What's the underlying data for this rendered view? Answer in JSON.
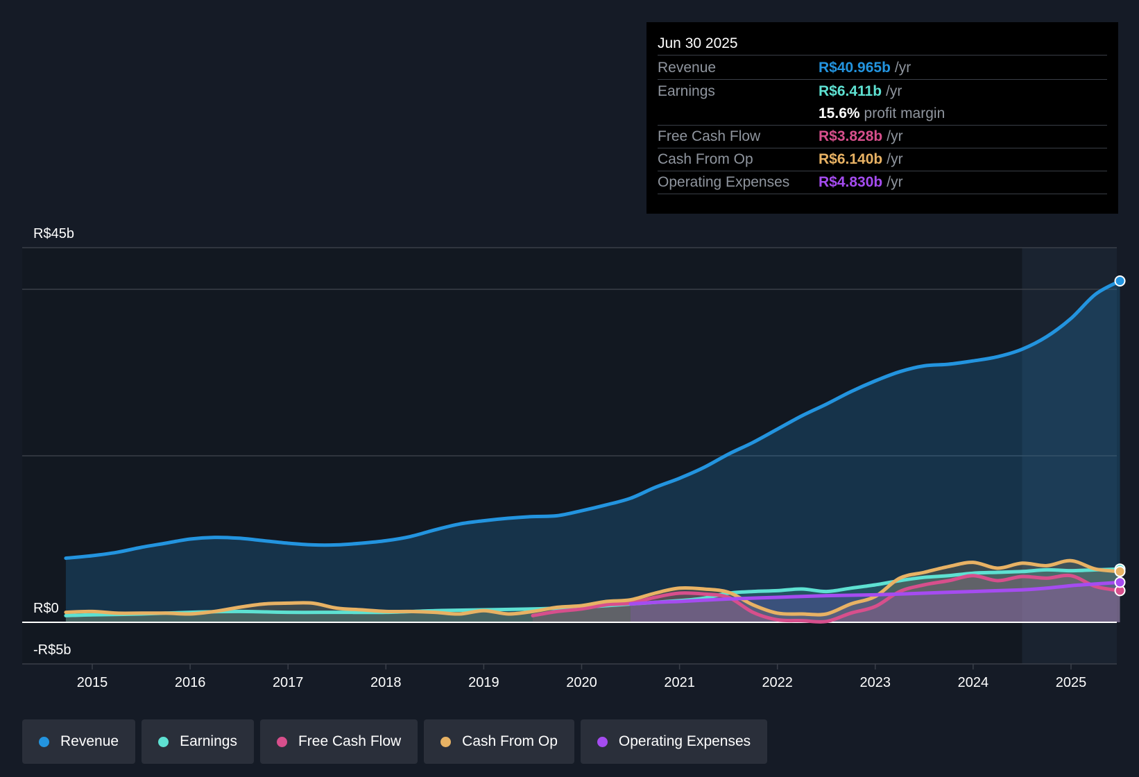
{
  "colors": {
    "revenue": "#2394df",
    "earnings": "#5ee1d2",
    "fcf": "#d74f8c",
    "cfo": "#e8b264",
    "opex": "#a54cf0",
    "grid": "#3a3f49",
    "background": "#151b26"
  },
  "tooltip": {
    "date": "Jun 30 2025",
    "rows": [
      {
        "label": "Revenue",
        "value": "R$40.965b",
        "unit": "/yr"
      },
      {
        "label": "Earnings",
        "value": "R$6.411b",
        "unit": "/yr"
      },
      {
        "label": "",
        "value": "15.6%",
        "unit": "profit margin"
      },
      {
        "label": "Free Cash Flow",
        "value": "R$3.828b",
        "unit": "/yr"
      },
      {
        "label": "Cash From Op",
        "value": "R$6.140b",
        "unit": "/yr"
      },
      {
        "label": "Operating Expenses",
        "value": "R$4.830b",
        "unit": "/yr"
      }
    ]
  },
  "legend": [
    {
      "label": "Revenue",
      "icon": "dot-icon"
    },
    {
      "label": "Earnings",
      "icon": "dot-icon"
    },
    {
      "label": "Free Cash Flow",
      "icon": "dot-icon"
    },
    {
      "label": "Cash From Op",
      "icon": "dot-icon"
    },
    {
      "label": "Operating Expenses",
      "icon": "dot-icon"
    }
  ],
  "chart_data": {
    "type": "line",
    "title": "",
    "xlabel": "",
    "ylabel": "",
    "ylim": [
      -5,
      45
    ],
    "xlim": [
      2014.73,
      2025.5
    ],
    "y_tick_labels": [
      {
        "value": 45,
        "label": "R$45b"
      },
      {
        "value": 0,
        "label": "R$0"
      },
      {
        "value": -5,
        "label": "-R$5b"
      }
    ],
    "gridlines": [
      45,
      40,
      20
    ],
    "x_ticks": [
      2015,
      2016,
      2017,
      2018,
      2019,
      2020,
      2021,
      2022,
      2023,
      2024,
      2025
    ],
    "x_tick_labels": [
      "2015",
      "2016",
      "2017",
      "2018",
      "2019",
      "2020",
      "2021",
      "2022",
      "2023",
      "2024",
      "2025"
    ],
    "forecast_start": 2024.5,
    "series": [
      {
        "name": "Revenue",
        "key": "revenue",
        "x": [
          2014.73,
          2015.0,
          2015.25,
          2015.5,
          2015.75,
          2016.0,
          2016.25,
          2016.5,
          2016.75,
          2017.0,
          2017.25,
          2017.5,
          2017.75,
          2018.0,
          2018.25,
          2018.5,
          2018.75,
          2019.0,
          2019.25,
          2019.5,
          2019.75,
          2020.0,
          2020.25,
          2020.5,
          2020.75,
          2021.0,
          2021.25,
          2021.5,
          2021.75,
          2022.0,
          2022.25,
          2022.5,
          2022.75,
          2023.0,
          2023.25,
          2023.5,
          2023.75,
          2024.0,
          2024.25,
          2024.5,
          2024.75,
          2025.0,
          2025.25,
          2025.5
        ],
        "values": [
          7.7,
          8.0,
          8.4,
          9.0,
          9.5,
          10.0,
          10.2,
          10.1,
          9.8,
          9.5,
          9.3,
          9.3,
          9.5,
          9.8,
          10.3,
          11.1,
          11.8,
          12.2,
          12.5,
          12.7,
          12.8,
          13.4,
          14.1,
          14.9,
          16.2,
          17.3,
          18.6,
          20.2,
          21.6,
          23.2,
          24.8,
          26.2,
          27.7,
          29.0,
          30.1,
          30.8,
          31.0,
          31.4,
          31.9,
          32.8,
          34.3,
          36.5,
          39.4,
          41.0
        ]
      },
      {
        "name": "Earnings",
        "key": "earnings",
        "x": [
          2014.73,
          2015.0,
          2015.5,
          2016.0,
          2016.5,
          2017.0,
          2017.5,
          2018.0,
          2018.5,
          2019.0,
          2019.5,
          2020.0,
          2020.5,
          2021.0,
          2021.25,
          2021.5,
          2021.75,
          2022.0,
          2022.25,
          2022.5,
          2022.75,
          2023.0,
          2023.25,
          2023.5,
          2023.75,
          2024.0,
          2024.25,
          2024.5,
          2024.75,
          2025.0,
          2025.25,
          2025.5
        ],
        "values": [
          0.8,
          0.9,
          1.0,
          1.2,
          1.3,
          1.2,
          1.2,
          1.2,
          1.4,
          1.5,
          1.6,
          1.8,
          2.2,
          2.6,
          2.9,
          3.5,
          3.7,
          3.8,
          4.0,
          3.7,
          4.1,
          4.5,
          5.0,
          5.4,
          5.6,
          5.9,
          6.0,
          6.1,
          6.3,
          6.2,
          6.3,
          6.4
        ]
      },
      {
        "name": "Free Cash Flow",
        "key": "fcf",
        "x": [
          2019.5,
          2019.75,
          2020.0,
          2020.25,
          2020.5,
          2020.75,
          2021.0,
          2021.25,
          2021.5,
          2021.75,
          2022.0,
          2022.25,
          2022.5,
          2022.75,
          2023.0,
          2023.25,
          2023.5,
          2023.75,
          2024.0,
          2024.25,
          2024.5,
          2024.75,
          2025.0,
          2025.25,
          2025.5
        ],
        "values": [
          0.8,
          1.3,
          1.6,
          2.1,
          2.3,
          3.0,
          3.5,
          3.4,
          3.0,
          1.2,
          0.3,
          0.2,
          0.1,
          1.1,
          1.9,
          3.7,
          4.5,
          5.0,
          5.6,
          5.0,
          5.5,
          5.3,
          5.6,
          4.3,
          3.8
        ]
      },
      {
        "name": "Cash From Op",
        "key": "cfo",
        "x": [
          2014.73,
          2015.0,
          2015.25,
          2015.5,
          2015.75,
          2016.0,
          2016.25,
          2016.5,
          2016.75,
          2017.0,
          2017.25,
          2017.5,
          2017.75,
          2018.0,
          2018.25,
          2018.5,
          2018.75,
          2019.0,
          2019.25,
          2019.5,
          2019.75,
          2020.0,
          2020.25,
          2020.5,
          2020.75,
          2021.0,
          2021.25,
          2021.5,
          2021.75,
          2022.0,
          2022.25,
          2022.5,
          2022.75,
          2023.0,
          2023.25,
          2023.5,
          2023.75,
          2024.0,
          2024.25,
          2024.5,
          2024.75,
          2025.0,
          2025.25,
          2025.5
        ],
        "values": [
          1.2,
          1.3,
          1.1,
          1.1,
          1.1,
          1.0,
          1.3,
          1.8,
          2.2,
          2.3,
          2.3,
          1.7,
          1.5,
          1.3,
          1.3,
          1.2,
          1.0,
          1.4,
          1.0,
          1.3,
          1.8,
          2.0,
          2.5,
          2.7,
          3.5,
          4.1,
          4.0,
          3.6,
          2.1,
          1.1,
          1.0,
          1.0,
          2.2,
          3.1,
          5.3,
          6.0,
          6.7,
          7.2,
          6.5,
          7.1,
          6.8,
          7.4,
          6.4,
          6.1
        ]
      },
      {
        "name": "Operating Expenses",
        "key": "opex",
        "x": [
          2020.5,
          2020.75,
          2021.0,
          2021.5,
          2022.0,
          2022.5,
          2023.0,
          2023.5,
          2024.0,
          2024.5,
          2024.75,
          2025.0,
          2025.25,
          2025.5
        ],
        "values": [
          2.2,
          2.4,
          2.5,
          2.8,
          3.0,
          3.2,
          3.3,
          3.5,
          3.7,
          3.9,
          4.1,
          4.4,
          4.6,
          4.8
        ]
      }
    ]
  }
}
